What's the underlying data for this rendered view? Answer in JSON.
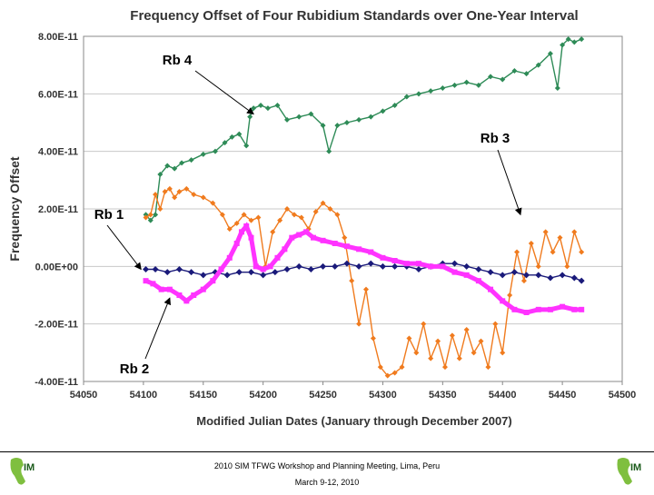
{
  "chart_data": {
    "type": "scatter",
    "title": "Frequency Offset of Four Rubidium Standards over One-Year Interval",
    "xlabel": "Modified Julian Dates (January through December 2007)",
    "ylabel": "Frequency Offset",
    "xlim": [
      54050,
      54500
    ],
    "ylim": [
      -4e-11,
      8e-11
    ],
    "x_ticks": [
      "54050",
      "54100",
      "54150",
      "54200",
      "54250",
      "54300",
      "54350",
      "54400",
      "54450",
      "54500"
    ],
    "y_ticks": [
      "-4.00E-11",
      "-2.00E-11",
      "0.00E+00",
      "2.00E-11",
      "4.00E-11",
      "6.00E-11",
      "8.00E-11"
    ],
    "grid": "horizontal",
    "annotations": [
      {
        "label": "Rb 4",
        "target": "Rb 4"
      },
      {
        "label": "Rb 3",
        "target": "Rb 3"
      },
      {
        "label": "Rb 1",
        "target": "Rb 1"
      },
      {
        "label": "Rb 2",
        "target": "Rb 2"
      }
    ],
    "series": [
      {
        "name": "Rb 4",
        "color": "#2e8b57",
        "x": [
          54102,
          54106,
          54110,
          54114,
          54120,
          54126,
          54132,
          54140,
          54150,
          54160,
          54168,
          54174,
          54180,
          54186,
          54189,
          54192,
          54198,
          54204,
          54212,
          54220,
          54230,
          54240,
          54250,
          54255,
          54262,
          54270,
          54280,
          54290,
          54300,
          54310,
          54320,
          54330,
          54340,
          54350,
          54360,
          54370,
          54380,
          54390,
          54400,
          54410,
          54420,
          54430,
          54440,
          54446,
          54450,
          54455,
          54460,
          54466
        ],
        "values": [
          1.8e-11,
          1.6e-11,
          1.8e-11,
          3.2e-11,
          3.5e-11,
          3.4e-11,
          3.6e-11,
          3.7e-11,
          3.9e-11,
          4e-11,
          4.3e-11,
          4.5e-11,
          4.6e-11,
          4.2e-11,
          5.2e-11,
          5.5e-11,
          5.6e-11,
          5.5e-11,
          5.6e-11,
          5.1e-11,
          5.2e-11,
          5.3e-11,
          4.9e-11,
          4e-11,
          4.9e-11,
          5e-11,
          5.1e-11,
          5.2e-11,
          5.4e-11,
          5.6e-11,
          5.9e-11,
          6e-11,
          6.1e-11,
          6.2e-11,
          6.3e-11,
          6.4e-11,
          6.3e-11,
          6.6e-11,
          6.5e-11,
          6.8e-11,
          6.7e-11,
          7e-11,
          7.4e-11,
          6.2e-11,
          7.7e-11,
          7.9e-11,
          7.8e-11,
          7.9e-11
        ]
      },
      {
        "name": "Rb 3",
        "color": "#f07b1e",
        "x": [
          54102,
          54106,
          54110,
          54114,
          54118,
          54122,
          54126,
          54130,
          54136,
          54142,
          54150,
          54158,
          54166,
          54172,
          54178,
          54184,
          54190,
          54196,
          54202,
          54208,
          54214,
          54220,
          54226,
          54232,
          54238,
          54244,
          54250,
          54256,
          54262,
          54268,
          54274,
          54280,
          54286,
          54292,
          54298,
          54304,
          54310,
          54316,
          54322,
          54328,
          54334,
          54340,
          54346,
          54352,
          54358,
          54364,
          54370,
          54376,
          54382,
          54388,
          54394,
          54400,
          54406,
          54412,
          54418,
          54424,
          54430,
          54436,
          54442,
          54448,
          54454,
          54460,
          54466
        ],
        "values": [
          1.7e-11,
          1.8e-11,
          2.5e-11,
          2e-11,
          2.6e-11,
          2.7e-11,
          2.4e-11,
          2.6e-11,
          2.7e-11,
          2.5e-11,
          2.4e-11,
          2.2e-11,
          1.8e-11,
          1.3e-11,
          1.5e-11,
          1.8e-11,
          1.6e-11,
          1.7e-11,
          0.0,
          1.2e-11,
          1.6e-11,
          2e-11,
          1.8e-11,
          1.7e-11,
          1.3e-11,
          1.9e-11,
          2.2e-11,
          2e-11,
          1.8e-11,
          1e-11,
          -5e-12,
          -2e-11,
          -8e-12,
          -2.5e-11,
          -3.5e-11,
          -3.8e-11,
          -3.7e-11,
          -3.5e-11,
          -2.5e-11,
          -3e-11,
          -2e-11,
          -3.2e-11,
          -2.6e-11,
          -3.5e-11,
          -2.4e-11,
          -3.2e-11,
          -2.2e-11,
          -3e-11,
          -2.6e-11,
          -3.5e-11,
          -2e-11,
          -3e-11,
          -1e-11,
          5e-12,
          -5e-12,
          8e-12,
          0.0,
          1.2e-11,
          5e-12,
          1e-11,
          0.0,
          1.2e-11,
          5e-12
        ]
      },
      {
        "name": "Rb 1",
        "color": "#1a1a7a",
        "x": [
          54102,
          54110,
          54120,
          54130,
          54140,
          54150,
          54160,
          54170,
          54180,
          54190,
          54200,
          54210,
          54220,
          54230,
          54240,
          54250,
          54260,
          54270,
          54280,
          54290,
          54300,
          54310,
          54320,
          54330,
          54340,
          54350,
          54360,
          54370,
          54380,
          54390,
          54400,
          54410,
          54420,
          54430,
          54440,
          54450,
          54460,
          54466
        ],
        "values": [
          -1e-12,
          -1e-12,
          -2e-12,
          -1e-12,
          -2e-12,
          -3e-12,
          -2e-12,
          -3e-12,
          -2e-12,
          -2e-12,
          -3e-12,
          -2e-12,
          -1e-12,
          0.0,
          -1e-12,
          0.0,
          0.0,
          1e-12,
          0.0,
          1e-12,
          0.0,
          0.0,
          0.0,
          -1e-12,
          0.0,
          1e-12,
          1e-12,
          0.0,
          -1e-12,
          -2e-12,
          -3e-12,
          -2e-12,
          -3e-12,
          -3e-12,
          -4e-12,
          -3e-12,
          -4e-12,
          -5e-12
        ]
      },
      {
        "name": "Rb 2",
        "color": "#ff33ff",
        "x": [
          54102,
          54108,
          54115,
          54122,
          54130,
          54136,
          54142,
          54150,
          54158,
          54165,
          54172,
          54178,
          54182,
          54186,
          54190,
          54194,
          54200,
          54206,
          54212,
          54218,
          54224,
          54230,
          54236,
          54242,
          54250,
          54260,
          54270,
          54280,
          54290,
          54300,
          54310,
          54320,
          54330,
          54340,
          54350,
          54360,
          54370,
          54380,
          54390,
          54400,
          54410,
          54420,
          54430,
          54440,
          54450,
          54460,
          54466
        ],
        "values": [
          -5e-12,
          -6e-12,
          -8e-12,
          -8e-12,
          -1e-11,
          -1.2e-11,
          -1e-11,
          -8e-12,
          -5e-12,
          -1e-12,
          3e-12,
          8e-12,
          1.2e-11,
          1.4e-11,
          1e-11,
          0.0,
          -1e-12,
          0.0,
          3e-12,
          6e-12,
          1e-11,
          1.1e-11,
          1.2e-11,
          1e-11,
          9e-12,
          8e-12,
          7e-12,
          6e-12,
          5e-12,
          3e-12,
          2e-12,
          1e-12,
          1e-12,
          0.0,
          0.0,
          -2e-12,
          -3e-12,
          -5e-12,
          -8e-12,
          -1.2e-11,
          -1.5e-11,
          -1.6e-11,
          -1.5e-11,
          -1.5e-11,
          -1.4e-11,
          -1.5e-11,
          -1.5e-11
        ]
      }
    ]
  },
  "footer": {
    "line1": "2010 SIM TFWG Workshop and Planning Meeting, Lima, Peru",
    "line2": "March 9-12, 2010",
    "logo_text": "IM"
  }
}
